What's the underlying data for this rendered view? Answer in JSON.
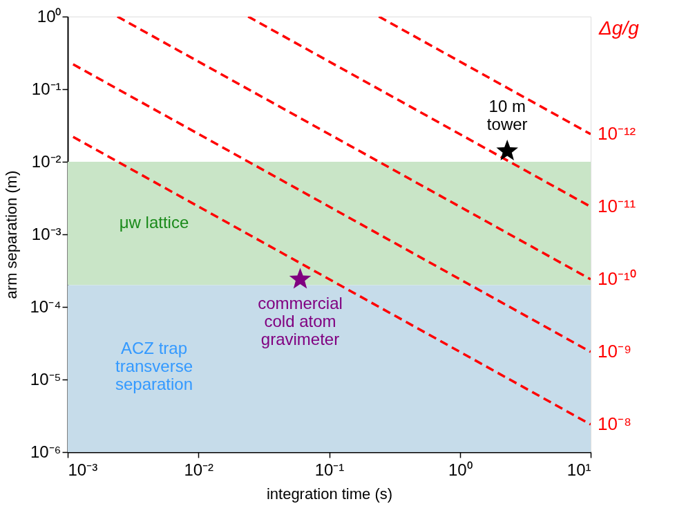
{
  "chart_data": {
    "type": "line",
    "xlabel": "integration time (s)",
    "ylabel": "arm separation (m)",
    "y2label": "Δg/g",
    "log": "xy",
    "grid": false,
    "xlim": [
      0.001,
      10
    ],
    "ylim": [
      1e-06,
      1
    ],
    "xticks": [
      {
        "value": 0.001,
        "label": "10⁻³"
      },
      {
        "value": 0.01,
        "label": "10⁻²"
      },
      {
        "value": 0.1,
        "label": "10⁻¹"
      },
      {
        "value": 1,
        "label": "10⁰"
      },
      {
        "value": 10,
        "label": "10¹"
      }
    ],
    "yticks": [
      {
        "value": 1e-06,
        "label": "10⁻⁶"
      },
      {
        "value": 1e-05,
        "label": "10⁻⁵"
      },
      {
        "value": 0.0001,
        "label": "10⁻⁴"
      },
      {
        "value": 0.001,
        "label": "10⁻³"
      },
      {
        "value": 0.01,
        "label": "10⁻²"
      },
      {
        "value": 0.1,
        "label": "10⁻¹"
      },
      {
        "value": 1,
        "label": "10⁰"
      }
    ],
    "bands": [
      {
        "axis": "y",
        "from": 0.0002,
        "to": 0.01,
        "label": "μw lattice",
        "color": "#c9e5c7"
      },
      {
        "axis": "y",
        "from": 1e-06,
        "to": 0.0002,
        "label": "ACZ trap\ntransverse\nseparation",
        "color": "#c6dcea"
      }
    ],
    "series": [
      {
        "color": "#ff0000",
        "line_style": "dashed",
        "x": [
          0.24,
          10
        ],
        "values": [
          1,
          0.024
        ]
      },
      {
        "color": "#ff0000",
        "line_style": "dashed",
        "x": [
          0.024,
          10
        ],
        "values": [
          1,
          0.0024
        ]
      },
      {
        "color": "#ff0000",
        "line_style": "dashed",
        "x": [
          0.0024,
          10
        ],
        "values": [
          1,
          0.00024
        ]
      },
      {
        "color": "#ff0000",
        "line_style": "dashed",
        "x": [
          0.0011,
          10
        ],
        "values": [
          0.22,
          2.4e-05
        ]
      },
      {
        "color": "#ff0000",
        "line_style": "dashed",
        "x": [
          0.0011,
          10
        ],
        "values": [
          0.022,
          2.4e-06
        ]
      },
      {
        "type": "scatter",
        "color": "#000000",
        "marker": "star",
        "x": [
          2.3
        ],
        "values": [
          0.014
        ]
      },
      {
        "type": "scatter",
        "color": "#800080",
        "marker": "star",
        "x": [
          0.06
        ],
        "values": [
          0.00024
        ]
      }
    ],
    "annotations": [
      {
        "text": "10 m\ntower",
        "x": 2.3,
        "y": 0.014
      },
      {
        "text": "commercial\ncold atom\ngravimeter",
        "x": 0.06,
        "y": 0.00024
      },
      {
        "text": "10⁻¹²",
        "x": 10,
        "y": 0.024
      },
      {
        "text": "10⁻¹¹",
        "x": 10,
        "y": 0.0024
      },
      {
        "text": "10⁻¹⁰",
        "x": 10,
        "y": 0.00024
      },
      {
        "text": "10⁻⁹",
        "x": 10,
        "y": 2.4e-05
      },
      {
        "text": "10⁻⁸",
        "x": 10,
        "y": 2.4e-06
      }
    ]
  }
}
